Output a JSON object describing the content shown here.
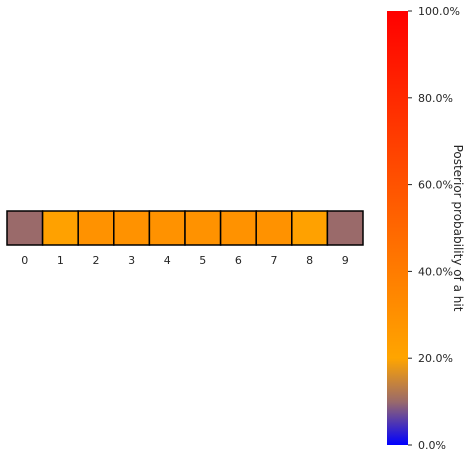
{
  "chart_data": {
    "type": "heatmap",
    "title": "",
    "xlabel": "",
    "ylabel": "",
    "x": [
      "0",
      "1",
      "2",
      "3",
      "4",
      "5",
      "6",
      "7",
      "8",
      "9"
    ],
    "values": [
      0.1,
      0.22,
      0.29,
      0.29,
      0.29,
      0.29,
      0.29,
      0.29,
      0.22,
      0.1
    ],
    "colorbar": {
      "label": "Posterior probability of a hit",
      "range": [
        0,
        1
      ],
      "ticks": [
        0.0,
        0.2,
        0.4,
        0.6,
        0.8,
        1.0
      ],
      "tick_labels": [
        "0.0%",
        "20.0%",
        "40.0%",
        "60.0%",
        "80.0%",
        "100.0%"
      ],
      "colormap_stops": [
        {
          "value": 0.0,
          "color": "#0000ff"
        },
        {
          "value": 0.1,
          "color": "#9a6a6a"
        },
        {
          "value": 0.2,
          "color": "#ffa500"
        },
        {
          "value": 1.0,
          "color": "#ff0000"
        }
      ]
    },
    "grid": false,
    "cell_border_color": "#000000"
  }
}
